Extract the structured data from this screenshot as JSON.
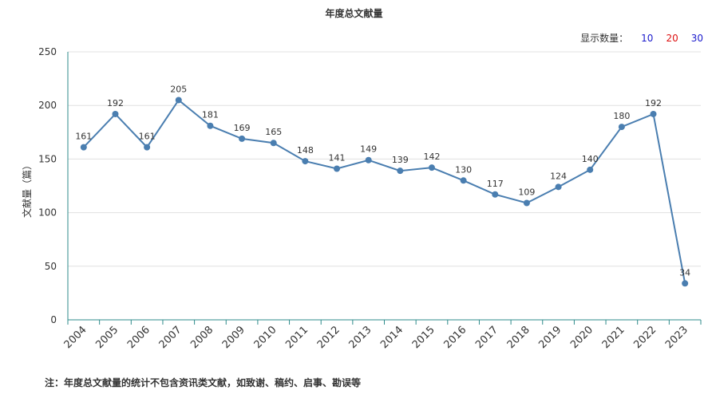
{
  "chart_title": "年度总文献量",
  "count_selector": {
    "label": "显示数量：",
    "options": [
      {
        "label": "10",
        "color": "#1a1acc"
      },
      {
        "label": "20",
        "color": "#dd1111"
      },
      {
        "label": "30",
        "color": "#1a1acc"
      }
    ]
  },
  "footnote": "注：年度总文献量的统计不包含资讯类文献，如致谢、稿约、启事、勘误等",
  "colors": {
    "line": "#4a7eb0",
    "axis": "#2e8b8b",
    "grid": "#e0e0e0"
  },
  "chart_data": {
    "type": "line",
    "categories": [
      "2004",
      "2005",
      "2006",
      "2007",
      "2008",
      "2009",
      "2010",
      "2011",
      "2012",
      "2013",
      "2014",
      "2015",
      "2016",
      "2017",
      "2018",
      "2019",
      "2020",
      "2021",
      "2022",
      "2023"
    ],
    "series": [
      {
        "values": [
          161,
          192,
          161,
          205,
          181,
          169,
          165,
          148,
          141,
          149,
          139,
          142,
          130,
          117,
          109,
          124,
          140,
          180,
          192,
          34
        ]
      }
    ],
    "ylabel": "文献量（篇）",
    "xlabel": "",
    "ylim": [
      0,
      250
    ],
    "yticks": [
      0,
      50,
      100,
      150,
      200,
      250
    ],
    "grid": true,
    "data_labels": true
  }
}
